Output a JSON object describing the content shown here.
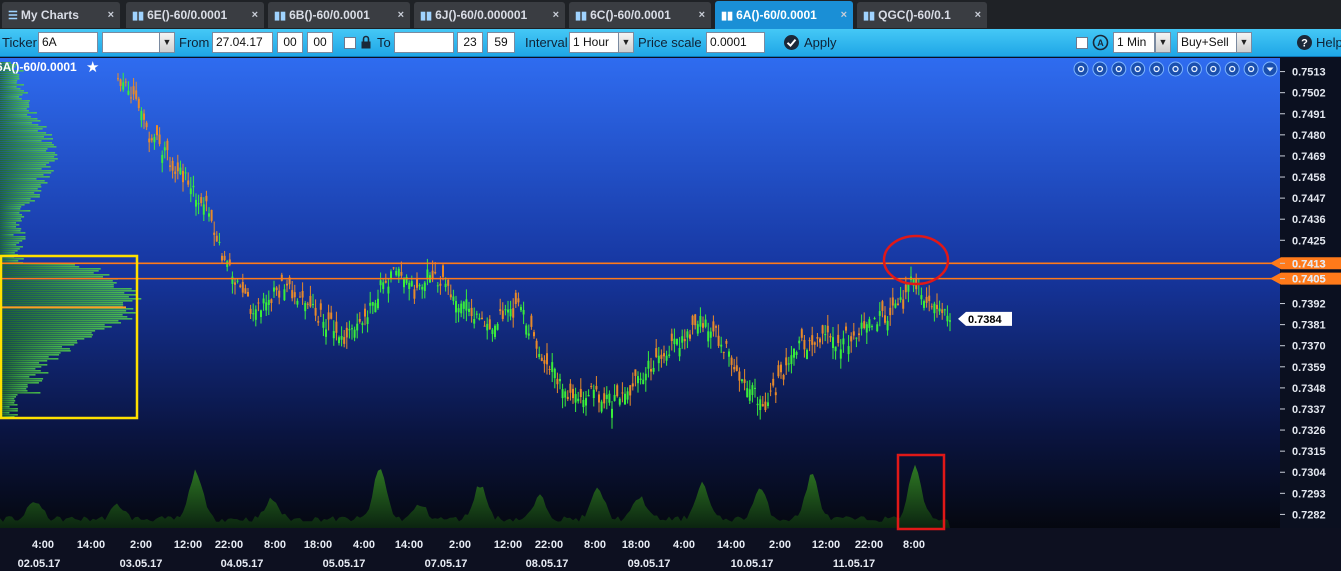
{
  "tabs": [
    {
      "label": "My Charts",
      "icon": "list-icon",
      "close": "×",
      "active": false
    },
    {
      "label": "6E()-60/0.0001",
      "icon": "chart-icon",
      "close": "×",
      "active": false
    },
    {
      "label": "6B()-60/0.0001",
      "icon": "chart-icon",
      "close": "×",
      "active": false
    },
    {
      "label": "6J()-60/0.000001",
      "icon": "chart-icon",
      "close": "×",
      "active": false
    },
    {
      "label": "6C()-60/0.0001",
      "icon": "chart-icon",
      "close": "×",
      "active": false
    },
    {
      "label": "6A()-60/0.0001",
      "icon": "chart-icon",
      "close": "×",
      "active": true
    },
    {
      "label": "QGC()-60/0.1",
      "icon": "chart-icon",
      "close": "×",
      "active": false
    }
  ],
  "toolbar": {
    "ticker_label": "Ticker",
    "ticker_value": "6A",
    "from_label": "From",
    "from_date": "27.04.17",
    "from_hour": "00",
    "from_min": "00",
    "to_label": "To",
    "to_date": "",
    "to_hour": "23",
    "to_min": "59",
    "interval_label": "Interval",
    "interval_value": "1 Hour",
    "price_scale_label": "Price scale",
    "price_scale_value": "0.0001",
    "apply_label": "Apply",
    "period_value": "1 Min",
    "mode_value": "Buy+Sell",
    "help_label": "Help"
  },
  "chart_data": {
    "type": "candlestick",
    "title": "6A()-60/0.0001",
    "price_ticks": [
      "0.7513",
      "0.7502",
      "0.7491",
      "0.7480",
      "0.7469",
      "0.7458",
      "0.7447",
      "0.7436",
      "0.7425",
      "0.7413",
      "0.7405",
      "0.7392",
      "0.7381",
      "0.7370",
      "0.7359",
      "0.7348",
      "0.7337",
      "0.7326",
      "0.7315",
      "0.7304",
      "0.7293",
      "0.7282"
    ],
    "ylim": [
      0.7277,
      0.7518
    ],
    "time_labels": [
      "4:00",
      "14:00",
      "2:00",
      "12:00",
      "22:00",
      "8:00",
      "18:00",
      "4:00",
      "14:00",
      "2:00",
      "12:00",
      "22:00",
      "8:00",
      "18:00",
      "4:00",
      "14:00",
      "2:00",
      "12:00",
      "22:00",
      "8:00"
    ],
    "date_labels": [
      "02.05.17",
      "03.05.17",
      "04.05.17",
      "05.05.17",
      "07.05.17",
      "08.05.17",
      "09.05.17",
      "10.05.17",
      "11.05.17"
    ],
    "horizontal_levels": [
      {
        "price": 0.7413,
        "label": "0.7413",
        "color": "#ff7a1a"
      },
      {
        "price": 0.7405,
        "label": "0.7405",
        "color": "#ff7a1a"
      }
    ],
    "last_price": {
      "price": 0.7384,
      "label": "0.7384"
    },
    "close_path": [
      [
        0,
        0.751
      ],
      [
        0.04,
        0.75
      ],
      [
        0.07,
        0.7482
      ],
      [
        0.12,
        0.747
      ],
      [
        0.17,
        0.7456
      ],
      [
        0.22,
        0.7442
      ],
      [
        0.26,
        0.7418
      ],
      [
        0.3,
        0.74
      ],
      [
        0.34,
        0.7388
      ],
      [
        0.38,
        0.7396
      ],
      [
        0.42,
        0.7402
      ],
      [
        0.46,
        0.7392
      ],
      [
        0.5,
        0.7386
      ],
      [
        0.54,
        0.7378
      ],
      [
        0.57,
        0.7372
      ],
      [
        0.62,
        0.7388
      ],
      [
        0.66,
        0.7402
      ],
      [
        0.7,
        0.7408
      ],
      [
        0.74,
        0.7398
      ],
      [
        0.78,
        0.741
      ],
      [
        0.82,
        0.74
      ],
      [
        0.86,
        0.7392
      ],
      [
        0.9,
        0.7384
      ],
      [
        0.93,
        0.738
      ],
      [
        0.96,
        0.7385
      ],
      [
        1.0,
        0.739
      ],
      [
        1.04,
        0.7372
      ],
      [
        1.08,
        0.7358
      ],
      [
        1.11,
        0.7348
      ],
      [
        1.15,
        0.7342
      ],
      [
        1.19,
        0.7346
      ],
      [
        1.22,
        0.734
      ],
      [
        1.26,
        0.7344
      ],
      [
        1.3,
        0.7352
      ],
      [
        1.34,
        0.7362
      ],
      [
        1.38,
        0.737
      ],
      [
        1.42,
        0.7376
      ],
      [
        1.45,
        0.7384
      ],
      [
        1.48,
        0.738
      ],
      [
        1.51,
        0.737
      ],
      [
        1.55,
        0.7356
      ],
      [
        1.59,
        0.7345
      ],
      [
        1.62,
        0.734
      ],
      [
        1.65,
        0.7352
      ],
      [
        1.68,
        0.7366
      ],
      [
        1.72,
        0.7372
      ],
      [
        1.76,
        0.7376
      ],
      [
        1.8,
        0.7372
      ],
      [
        1.84,
        0.7376
      ],
      [
        1.88,
        0.7382
      ],
      [
        1.92,
        0.7386
      ],
      [
        1.96,
        0.7393
      ],
      [
        1.98,
        0.7406
      ],
      [
        2.0,
        0.7398
      ],
      [
        2.03,
        0.739
      ],
      [
        2.06,
        0.7386
      ],
      [
        2.08,
        0.7384
      ]
    ],
    "annotations": [
      {
        "type": "rect",
        "color": "#ffe000",
        "price_range": [
          0.7341,
          0.7413
        ],
        "region": "volume-profile"
      },
      {
        "type": "ellipse",
        "color": "#e01818",
        "price_range": [
          0.7398,
          0.742
        ],
        "region": "spike"
      },
      {
        "type": "rect",
        "color": "#e01818",
        "region": "volume-spike"
      }
    ],
    "icons": [
      "zoom-in-icon",
      "zoom-out-icon",
      "zoom-fit-icon",
      "zoom-reset-icon",
      "pencil-icon",
      "edit-icon",
      "refresh-icon",
      "settings-icon",
      "export-icon",
      "close-icon",
      "menu-down-icon"
    ]
  }
}
